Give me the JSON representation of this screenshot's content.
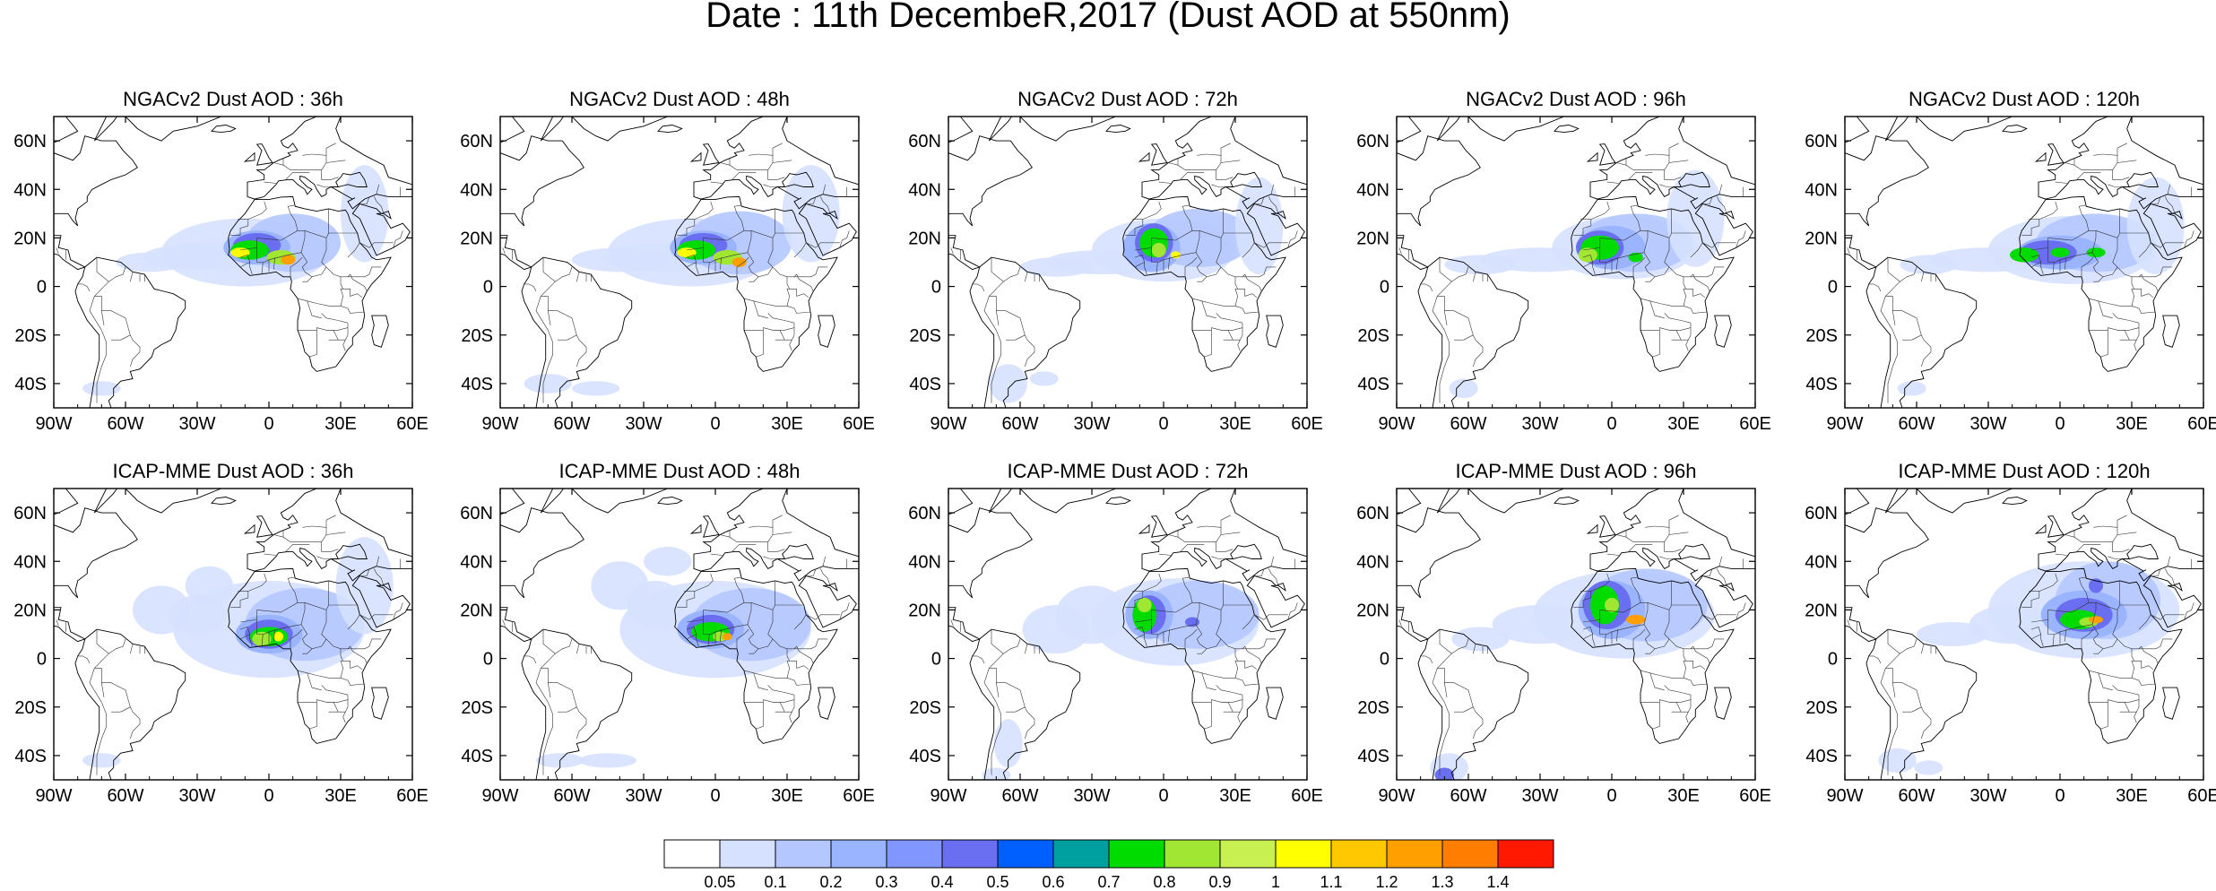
{
  "figure": {
    "title": "Date : 11th DecembeR,2017 (Dust AOD at 550nm)"
  },
  "lon_ticks": [
    "90W",
    "60W",
    "30W",
    "0",
    "30E",
    "60E"
  ],
  "lat_ticks": [
    "60N",
    "40N",
    "20N",
    "0",
    "20S",
    "40S"
  ],
  "panels": [
    {
      "title": "NGACv2 Dust AOD : 36h",
      "model": "NGACv2",
      "lead": "36h"
    },
    {
      "title": "NGACv2 Dust AOD : 48h",
      "model": "NGACv2",
      "lead": "48h"
    },
    {
      "title": "NGACv2 Dust AOD : 72h",
      "model": "NGACv2",
      "lead": "72h"
    },
    {
      "title": "NGACv2 Dust AOD : 96h",
      "model": "NGACv2",
      "lead": "96h"
    },
    {
      "title": "NGACv2 Dust AOD : 120h",
      "model": "NGACv2",
      "lead": "120h"
    },
    {
      "title": "ICAP-MME Dust AOD : 36h",
      "model": "ICAP-MME",
      "lead": "36h"
    },
    {
      "title": "ICAP-MME Dust AOD : 48h",
      "model": "ICAP-MME",
      "lead": "48h"
    },
    {
      "title": "ICAP-MME Dust AOD : 72h",
      "model": "ICAP-MME",
      "lead": "72h"
    },
    {
      "title": "ICAP-MME Dust AOD : 96h",
      "model": "ICAP-MME",
      "lead": "96h"
    },
    {
      "title": "ICAP-MME Dust AOD : 120h",
      "model": "ICAP-MME",
      "lead": "120h"
    }
  ],
  "colorbar": {
    "labels": [
      "0.05",
      "0.1",
      "0.2",
      "0.3",
      "0.4",
      "0.5",
      "0.6",
      "0.7",
      "0.8",
      "0.9",
      "1",
      "1.1",
      "1.2",
      "1.3",
      "1.4"
    ],
    "colors": [
      "#ffffff",
      "#d6e1ff",
      "#b4c7ff",
      "#9ab4ff",
      "#8296ff",
      "#6a6ef0",
      "#0060ff",
      "#00a0a0",
      "#00dc00",
      "#a0e632",
      "#c8f050",
      "#ffff00",
      "#ffc800",
      "#ffa000",
      "#ff7d00",
      "#ff1900"
    ]
  },
  "map_colors": {
    "coast": "#000000",
    "plume_low": "#d6e1ff",
    "plume_mid": "#8296ff",
    "plume_high": "#00dc00",
    "plume_peak": "#ffff00"
  }
}
